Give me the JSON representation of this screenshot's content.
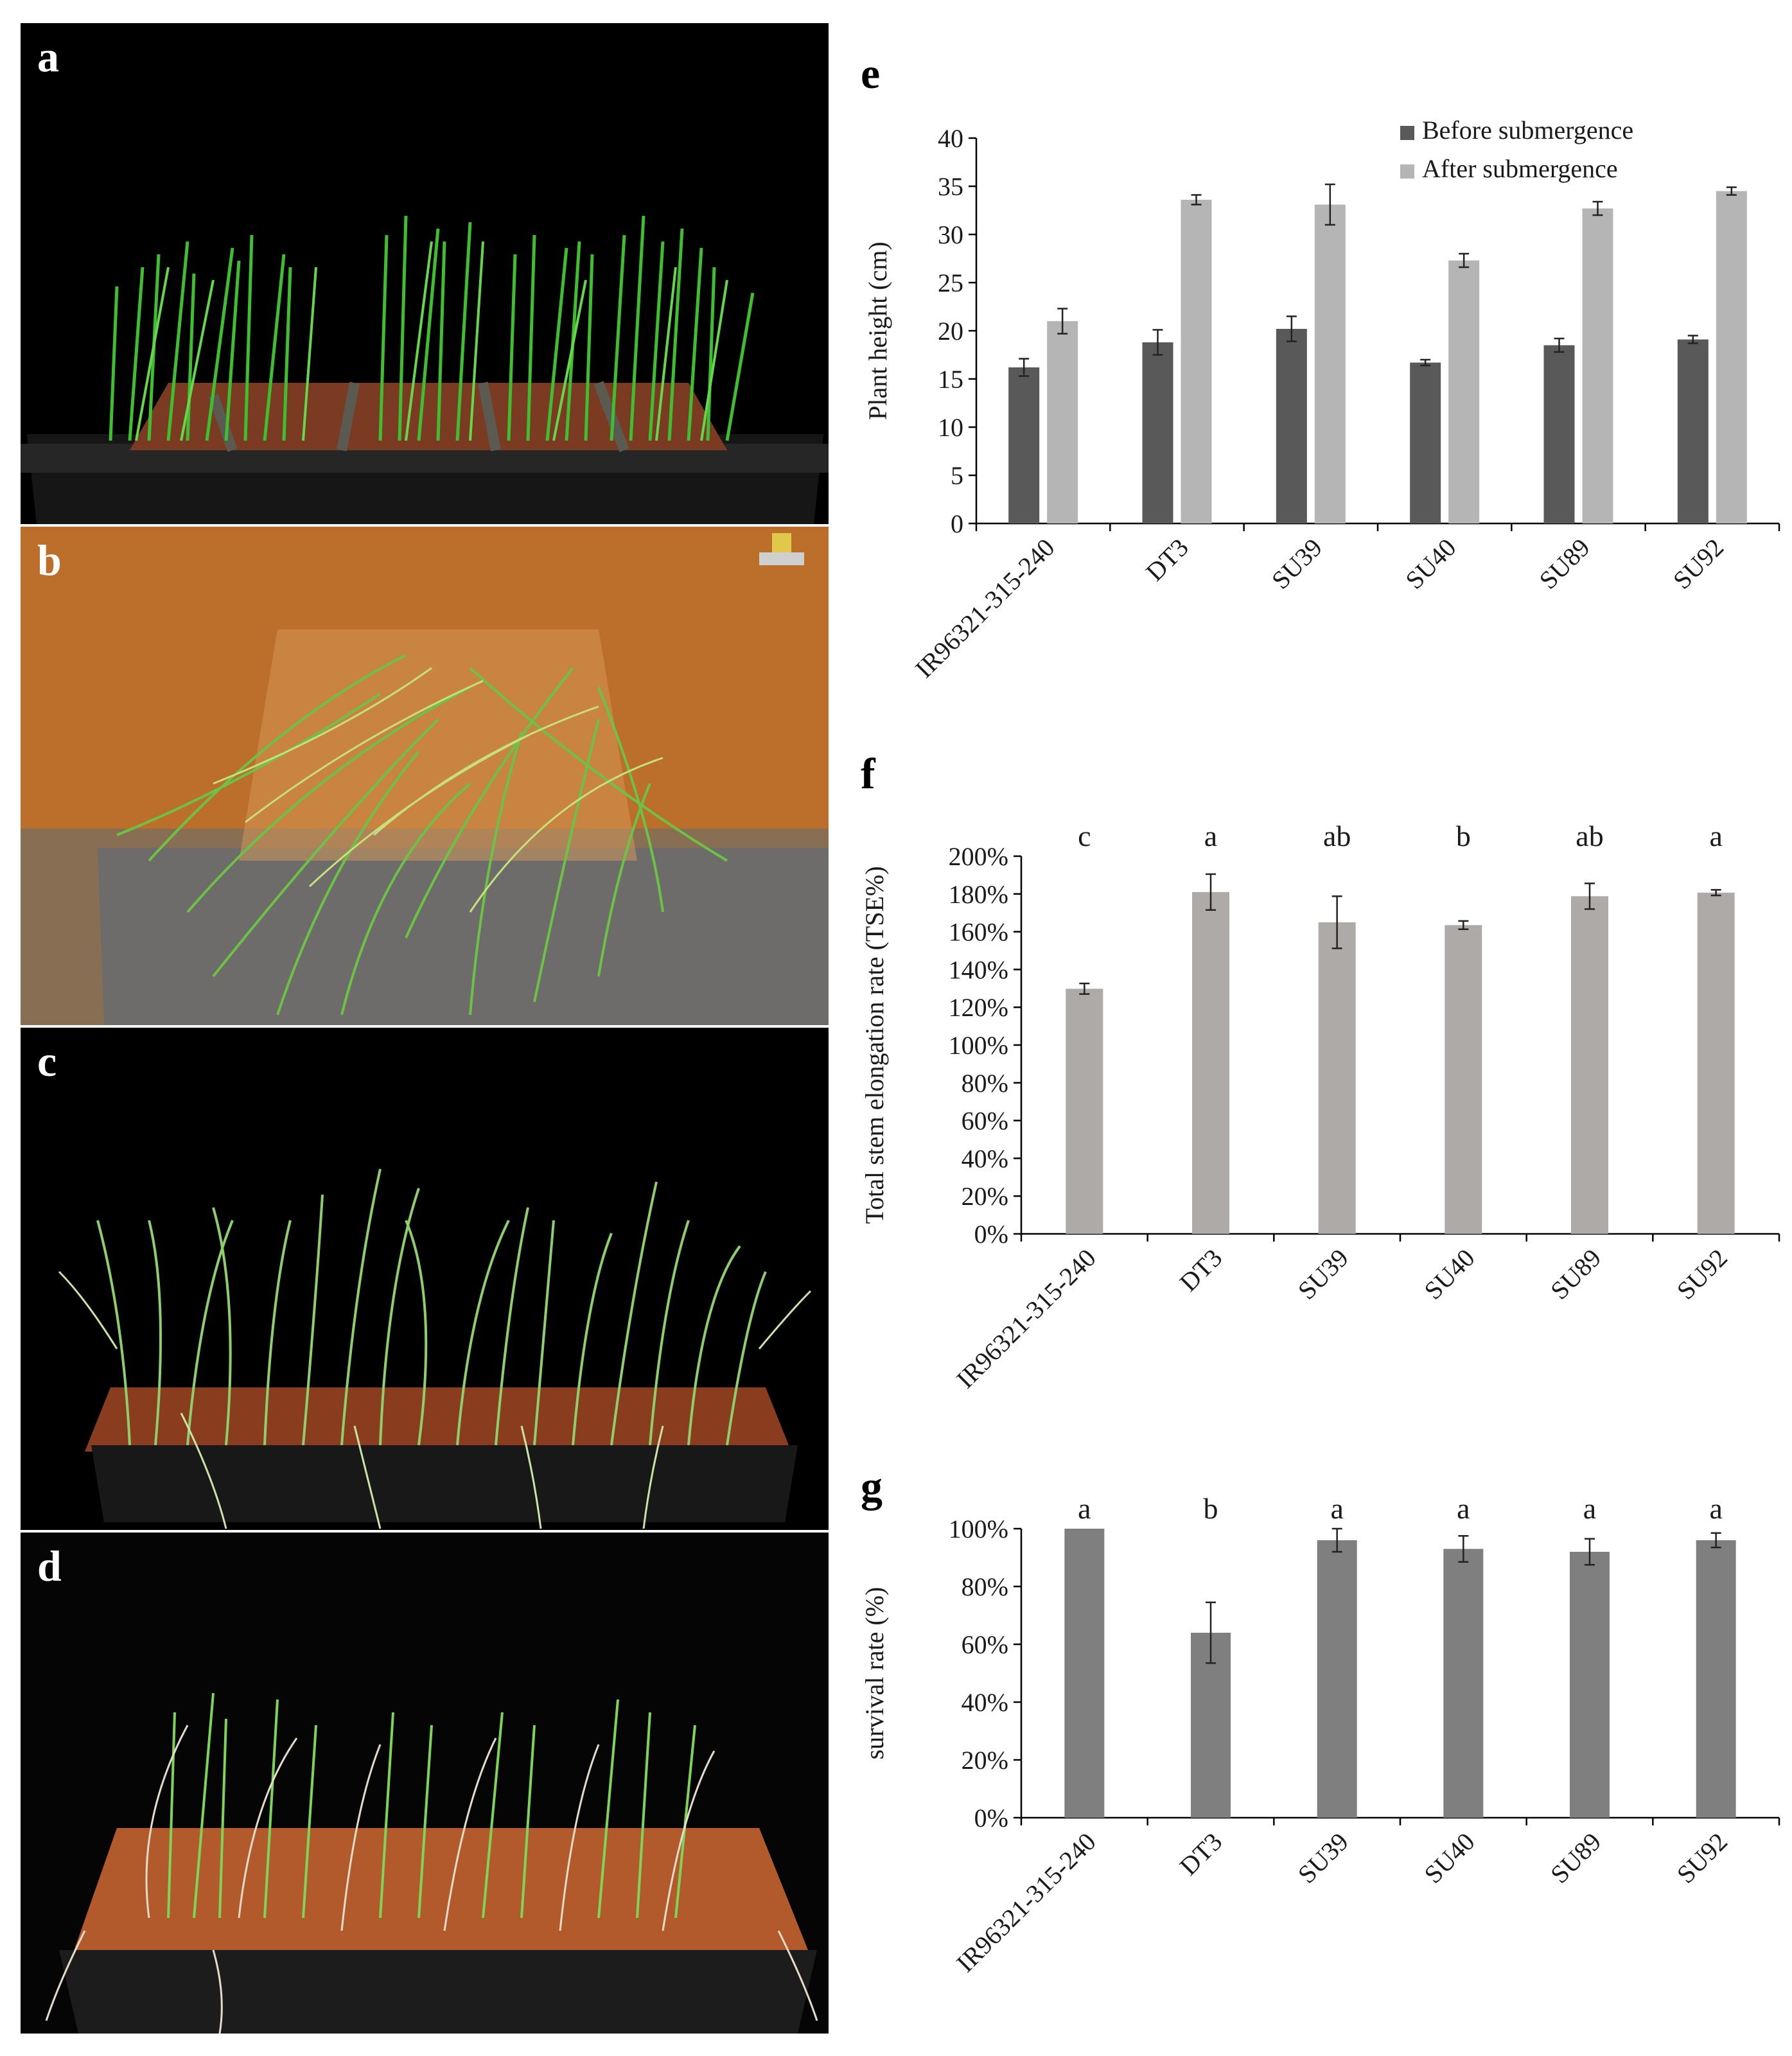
{
  "panels": {
    "a": "a",
    "b": "b",
    "c": "c",
    "d": "d",
    "e": "e",
    "f": "f",
    "g": "g"
  },
  "photos": [
    {
      "id": "a",
      "scene": "green rice seedlings in black tray before submergence",
      "background": "#000000"
    },
    {
      "id": "b",
      "scene": "rice seedlings spread out in orange submergence tank",
      "background": "#c2742c"
    },
    {
      "id": "c",
      "scene": "rice seedlings in black tray after submergence, recovering",
      "background": "#000000"
    },
    {
      "id": "d",
      "scene": "rice seedlings in tray after recovery period",
      "background": "#050505"
    }
  ],
  "colors": {
    "before": "#595959",
    "after": "#b5b5b5",
    "tse_bar": "#aeaaa7",
    "survival_bar": "#7f7f7f"
  },
  "chart_data": [
    {
      "id": "e",
      "type": "bar",
      "categories": [
        "IR96321-315-240",
        "DT3",
        "SU39",
        "SU40",
        "SU89",
        "SU92"
      ],
      "series": [
        {
          "name": "Before submergence",
          "values": [
            16.2,
            18.8,
            20.2,
            16.7,
            18.5,
            19.1
          ],
          "errors": [
            0.9,
            1.3,
            1.3,
            0.3,
            0.7,
            0.4
          ]
        },
        {
          "name": "After submergence",
          "values": [
            21.0,
            33.6,
            33.1,
            27.3,
            32.7,
            34.5
          ],
          "errors": [
            1.3,
            0.5,
            2.1,
            0.7,
            0.7,
            0.4
          ]
        }
      ],
      "ylabel": "Plant height (cm)",
      "ylim": [
        0,
        40
      ],
      "yticks": [
        "0",
        "5",
        "10",
        "15",
        "20",
        "25",
        "30",
        "35",
        "40"
      ],
      "legend": "top-right",
      "grid": false
    },
    {
      "id": "f",
      "type": "bar",
      "categories": [
        "IR96321-315-240",
        "DT3",
        "SU39",
        "SU40",
        "SU89",
        "SU92"
      ],
      "values": [
        129.8,
        181.0,
        165.0,
        163.5,
        178.8,
        180.7
      ],
      "errors": [
        2.8,
        9.5,
        13.8,
        2.2,
        6.8,
        1.5
      ],
      "letters": [
        "c",
        "a",
        "ab",
        "b",
        "ab",
        "a"
      ],
      "ylabel": "Total stem elongation rate (TSE%)",
      "ylim": [
        0,
        200
      ],
      "yticks": [
        "0%",
        "20%",
        "40%",
        "60%",
        "80%",
        "100%",
        "120%",
        "140%",
        "160%",
        "180%",
        "200%"
      ],
      "grid": false
    },
    {
      "id": "g",
      "type": "bar",
      "categories": [
        "IR96321-315-240",
        "DT3",
        "SU39",
        "SU40",
        "SU89",
        "SU92"
      ],
      "values": [
        100,
        64,
        96,
        93,
        92,
        96
      ],
      "errors": [
        0,
        10.5,
        4,
        4.5,
        4.5,
        2.5
      ],
      "letters": [
        "a",
        "b",
        "a",
        "a",
        "a",
        "a"
      ],
      "ylabel": "survival rate (%)",
      "ylim": [
        0,
        100
      ],
      "yticks": [
        "0%",
        "20%",
        "40%",
        "60%",
        "80%",
        "100%"
      ],
      "grid": false
    }
  ]
}
